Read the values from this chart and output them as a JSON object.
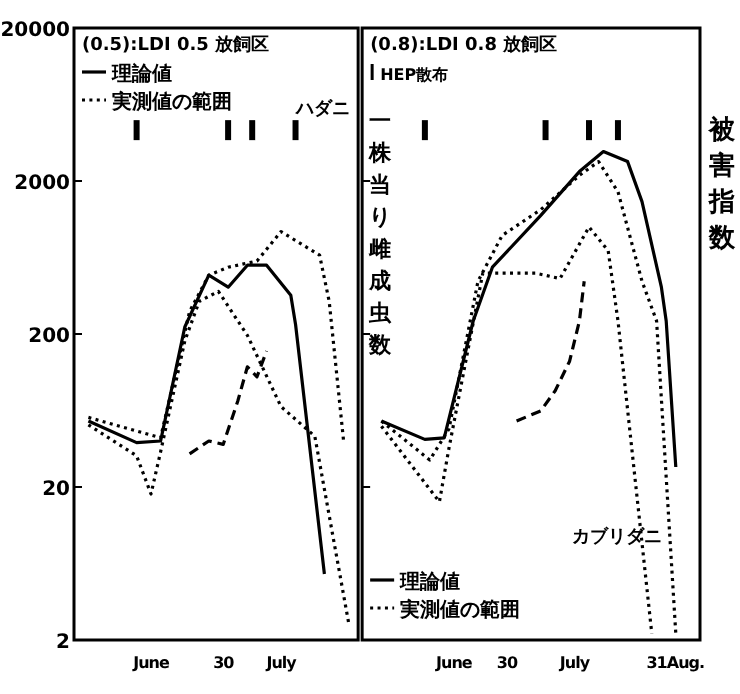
{
  "chart_data": [
    {
      "type": "line",
      "title": "(0.5):LDI 0.5 放飼区",
      "log": "y",
      "xlim": [
        "--05-30",
        "--07-28"
      ],
      "ylim": [
        2,
        20000
      ],
      "yticks": [
        2,
        20,
        200,
        2000,
        20000
      ],
      "xticks": [
        {
          "value": "--06-15",
          "label": "June"
        },
        {
          "value": "--06-30",
          "label": "30"
        },
        {
          "value": "--07-12",
          "label": "July"
        }
      ],
      "legend": "top left",
      "annotations": [
        "ハダニ"
      ],
      "series": [
        {
          "name": "理論値",
          "color": "#000000",
          "line_style": "solid",
          "x": [
            "--06-02",
            "--06-12",
            "--06-17",
            "--06-22",
            "--06-27",
            "--07-01",
            "--07-05",
            "--07-09",
            "--07-14",
            "--07-15",
            "--07-21"
          ],
          "values": [
            54,
            39,
            40,
            222,
            484,
            405,
            564,
            564,
            359,
            230,
            5.4
          ]
        },
        {
          "name": "実測値の範囲",
          "color": "#000000",
          "line_style": "dotted",
          "x": [
            "--06-02",
            "--06-17",
            "--06-23",
            "--06-27",
            "--07-01",
            "--07-07",
            "--07-12",
            "--07-20",
            "--07-22",
            "--07-25"
          ],
          "values": [
            57,
            42,
            281,
            484,
            547,
            600,
            935,
            655,
            327,
            40
          ]
        },
        {
          "color": "#000000",
          "line_style": "dotted",
          "x": [
            "--06-02",
            "--06-12",
            "--06-15",
            "--06-17",
            "--06-22",
            "--06-25",
            "--06-29",
            "--07-05",
            "--07-12",
            "--07-19",
            "--07-26"
          ],
          "values": [
            51,
            32,
            18,
            34,
            180,
            327,
            380,
            196,
            67,
            43,
            2.6
          ]
        },
        {
          "color": "#000000",
          "line_style": "dashed",
          "x": [
            "--06-23",
            "--06-27",
            "--06-30",
            "--07-03",
            "--07-05",
            "--07-07",
            "--07-09"
          ],
          "values": [
            33,
            40,
            38,
            73,
            122,
            105,
            155
          ]
        },
        {
          "type": "scatter",
          "color": "#000000",
          "x": [
            "--06-12",
            "--07-01",
            "--07-06",
            "--07-15"
          ],
          "values": [
            4300,
            4300,
            4300,
            4300
          ]
        }
      ]
    },
    {
      "type": "line",
      "title": "(0.8):LDI 0.8 放飼区",
      "log": "y",
      "xlim": [
        "--05-31",
        "--08-09"
      ],
      "ylim": [
        2,
        20000
      ],
      "yticks": [
        2,
        20,
        200,
        2000,
        20000
      ],
      "tick_labels": "x",
      "xticks": [
        {
          "value": "--06-19",
          "label": "June"
        },
        {
          "value": "--06-30",
          "label": "30"
        },
        {
          "value": "--07-14",
          "label": "July"
        },
        {
          "value": "--07-31",
          "label": "31"
        },
        {
          "value": "--08-06",
          "label": "Aug."
        }
      ],
      "ylabel": "一株当り雌成虫数",
      "y2label": "被害指数",
      "legend": "bottom left",
      "annotations": [
        "カブリダニ"
      ],
      "series": [
        {
          "name": "理論値",
          "color": "#000000",
          "line_style": "solid",
          "x": [
            "--06-04",
            "--06-13",
            "--06-17",
            "--06-23",
            "--06-27",
            "--07-07",
            "--07-15",
            "--07-20",
            "--07-25",
            "--07-28",
            "--08-01",
            "--08-02",
            "--08-04"
          ],
          "values": [
            54,
            41,
            42,
            243,
            546,
            1192,
            2306,
            3111,
            2680,
            1469,
            405,
            243,
            27
          ]
        },
        {
          "name": "実測値の範囲",
          "color": "#000000",
          "line_style": "dotted",
          "x": [
            "--06-04",
            "--06-14",
            "--06-18",
            "--06-24",
            "--06-29",
            "--07-07",
            "--07-15",
            "--07-19",
            "--07-23",
            "--07-28",
            "--07-31",
            "--08-04"
          ],
          "values": [
            54,
            30,
            48,
            443,
            883,
            1300,
            2174,
            2680,
            1700,
            443,
            243,
            2.2
          ]
        },
        {
          "color": "#000000",
          "line_style": "dotted",
          "x": [
            "--06-04",
            "--06-16",
            "--06-18",
            "--06-25",
            "--07-06",
            "--07-11",
            "--07-17",
            "--07-21",
            "--07-23",
            "--07-30"
          ],
          "values": [
            50,
            16,
            36,
            500,
            500,
            460,
            1000,
            700,
            243,
            2.2
          ]
        },
        {
          "color": "#000000",
          "line_style": "dashed",
          "x": [
            "--07-02",
            "--07-07",
            "--07-10",
            "--07-13",
            "--07-15",
            "--07-16"
          ],
          "values": [
            54,
            63,
            85,
            133,
            243,
            443
          ]
        },
        {
          "type": "scatter",
          "name": "HEP散布",
          "color": "#000000",
          "x": [
            "--06-13",
            "--07-08",
            "--07-17",
            "--07-23"
          ],
          "values": [
            4300,
            4300,
            4300,
            4300
          ]
        }
      ]
    }
  ]
}
